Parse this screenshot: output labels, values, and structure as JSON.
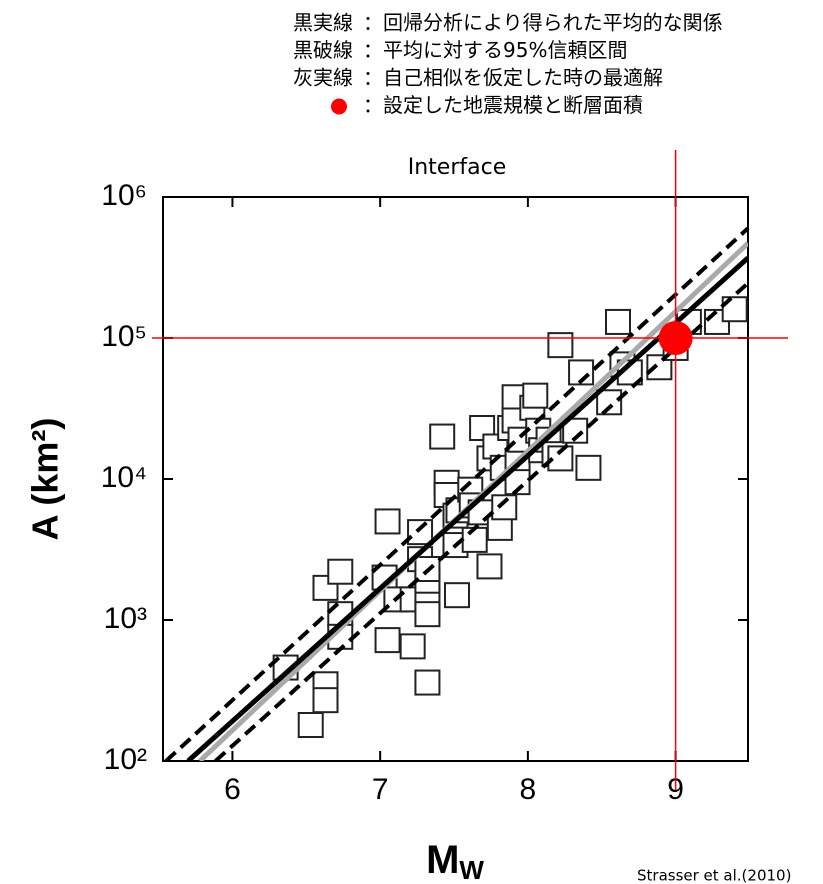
{
  "chart_data": {
    "type": "scatter",
    "legend": [
      {
        "key": "黒実線",
        "text": "：回帰分析により得られた平均的な関係"
      },
      {
        "key": "黒破線",
        "text": "：平均に対する95%信頼区間"
      },
      {
        "key": "灰実線",
        "text": "：自己相似を仮定した時の最適解"
      },
      {
        "key": null,
        "text": "：設定した地震規模と断層面積",
        "color": "#ff0000"
      }
    ],
    "title": "Interface",
    "y_label": "A (km²)",
    "x_label": "M",
    "x_label_sub": "W",
    "source": "Strasser et al.(2010)",
    "xlim": [
      5.53,
      9.49
    ],
    "xticks": [
      6,
      7,
      8,
      9
    ],
    "ylim": [
      100,
      1000000
    ],
    "y_scale": "log",
    "yticks": [
      {
        "value": 100,
        "label": "10²"
      },
      {
        "value": 1000,
        "label": "10³"
      },
      {
        "value": 10000,
        "label": "10⁴"
      },
      {
        "value": 100000,
        "label": "10⁵"
      },
      {
        "value": 1000000,
        "label": "10⁶"
      }
    ],
    "lines": [
      {
        "style": "solid",
        "color": "#aaaaaa",
        "x": [
          5.78,
          9.49
        ],
        "values": [
          100,
          470000
        ]
      },
      {
        "style": "dashed",
        "color": "#000000",
        "x": [
          5.55,
          9.49
        ],
        "values": [
          100,
          600000
        ]
      },
      {
        "style": "dashed",
        "color": "#000000",
        "x": [
          5.885,
          9.49
        ],
        "values": [
          100,
          245000
        ]
      },
      {
        "style": "solid",
        "color": "#000000",
        "x": [
          5.7,
          9.49
        ],
        "values": [
          100,
          370000
        ]
      }
    ],
    "points": {
      "x": [
        6.36,
        6.53,
        6.63,
        6.63,
        6.63,
        6.73,
        6.73,
        6.73,
        7.05,
        7.03,
        7.05,
        7.11,
        7.22,
        7.27,
        7.27,
        7.22,
        7.32,
        7.32,
        7.32,
        7.32,
        7.32,
        7.42,
        7.45,
        7.45,
        7.51,
        7.51,
        7.52,
        7.53,
        7.61,
        7.62,
        7.64,
        7.68,
        7.69,
        7.74,
        7.74,
        7.78,
        7.81,
        7.83,
        7.84,
        7.88,
        7.91,
        7.91,
        7.93,
        7.95,
        7.93,
        8.03,
        8.05,
        8.07,
        8.09,
        8.14,
        8.18,
        8.22,
        8.22,
        8.32,
        8.36,
        8.41,
        8.55,
        8.61,
        8.64,
        8.69,
        8.89,
        9.0,
        9.09,
        9.28,
        9.4
      ],
      "values": [
        460,
        180,
        350,
        270,
        1690,
        2200,
        1100,
        760,
        5000,
        2000,
        720,
        1400,
        1400,
        4200,
        2700,
        650,
        1400,
        1100,
        1900,
        2300,
        360,
        20000,
        9400,
        7700,
        5500,
        3400,
        1500,
        6000,
        8400,
        6500,
        3700,
        5800,
        23000,
        2400,
        14000,
        17000,
        4500,
        12000,
        6300,
        23000,
        38000,
        26000,
        13000,
        19000,
        9500,
        32000,
        39000,
        22000,
        16000,
        19000,
        15000,
        14000,
        89000,
        22000,
        57000,
        12000,
        35000,
        130000,
        65000,
        57000,
        62000,
        85000,
        130000,
        130000,
        160000
      ]
    },
    "highlight": {
      "x": 9,
      "value": 100000,
      "color": "#ff0000"
    }
  }
}
